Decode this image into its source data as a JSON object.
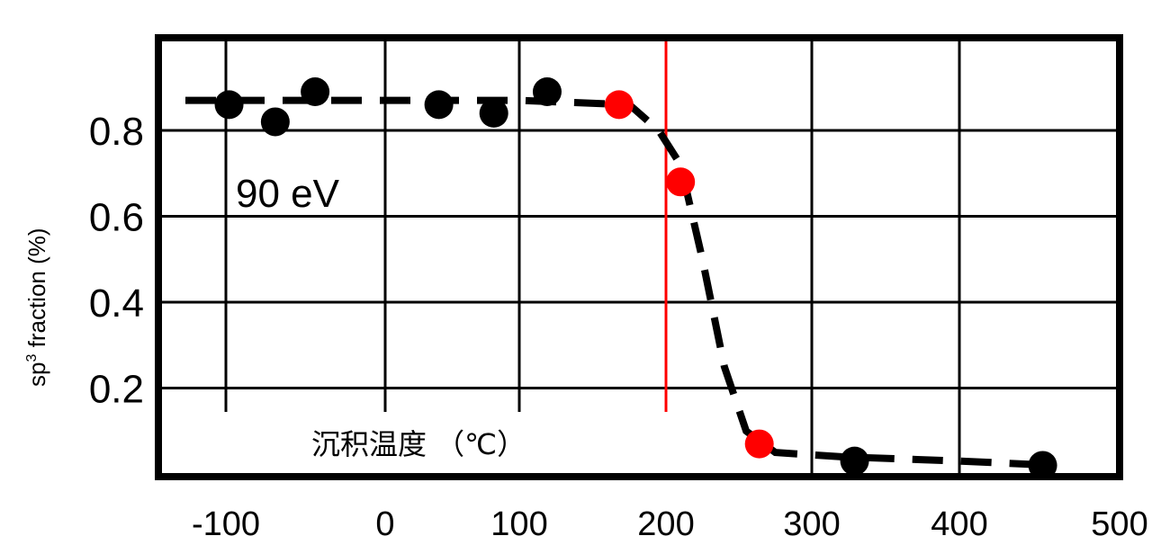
{
  "chart_data": {
    "type": "scatter",
    "title": "",
    "xlabel": "沉积温度 （℃）",
    "ylabel": "sp3 fraction (%)",
    "ylabel_main": "sp",
    "ylabel_sup": "3",
    "ylabel_rest": " fraction (%)",
    "annotation": "90 eV",
    "xlim": [
      -150,
      500
    ],
    "ylim": [
      0,
      1.0
    ],
    "x_ticks": [
      -100,
      0,
      100,
      200,
      300,
      400,
      500
    ],
    "x_tick_labels": [
      "-100",
      "0",
      "100",
      "200",
      "300",
      "400",
      "500"
    ],
    "y_ticks": [
      0.2,
      0.4,
      0.6,
      0.8
    ],
    "y_tick_labels": [
      "0.2",
      "0.4",
      "0.6",
      "0.8"
    ],
    "grid": true,
    "legend": null,
    "vertical_marker": {
      "x": 200,
      "color": "#ff0000"
    },
    "series": [
      {
        "name": "sp3 fraction (black points)",
        "color": "#000000",
        "x": [
          -98,
          -69,
          -44,
          40,
          81,
          119,
          329,
          452
        ],
        "y": [
          0.86,
          0.82,
          0.89,
          0.86,
          0.84,
          0.89,
          0.03,
          0.02
        ]
      },
      {
        "name": "sp3 fraction (highlighted red points)",
        "color": "#ff0000",
        "x": [
          168,
          210,
          264
        ],
        "y": [
          0.86,
          0.68,
          0.07
        ]
      },
      {
        "name": "dashed trend curve",
        "style": "dashed",
        "color": "#000000",
        "x": [
          -130,
          100,
          175,
          195,
          210,
          225,
          240,
          255,
          275,
          320,
          400,
          460
        ],
        "y": [
          0.87,
          0.87,
          0.86,
          0.8,
          0.72,
          0.5,
          0.25,
          0.1,
          0.05,
          0.04,
          0.03,
          0.02
        ]
      }
    ]
  }
}
